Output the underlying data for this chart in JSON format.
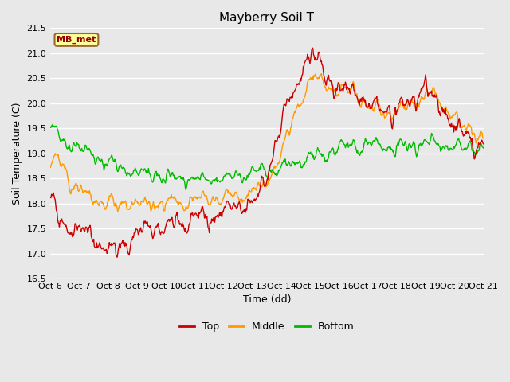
{
  "title": "Mayberry Soil T",
  "xlabel": "Time (dd)",
  "ylabel": "Soil Temperature (C)",
  "ylim": [
    16.5,
    21.5
  ],
  "yticks": [
    16.5,
    17.0,
    17.5,
    18.0,
    18.5,
    19.0,
    19.5,
    20.0,
    20.5,
    21.0,
    21.5
  ],
  "xtick_labels": [
    "Oct 6",
    "Oct 7",
    "Oct 8",
    "Oct 9",
    "Oct 10",
    "Oct 11",
    "Oct 12",
    "Oct 13",
    "Oct 14",
    "Oct 15",
    "Oct 16",
    "Oct 17",
    "Oct 18",
    "Oct 19",
    "Oct 20",
    "Oct 21"
  ],
  "top_color": "#cc0000",
  "mid_color": "#ff9900",
  "bot_color": "#00bb00",
  "bg_color": "#e8e8e8",
  "fig_bg_color": "#e8e8e8",
  "legend_label": "MB_met",
  "legend_box_color": "#ffff99",
  "legend_box_edge": "#996633",
  "line_width": 1.0,
  "n_days": 15,
  "n_points": 720
}
